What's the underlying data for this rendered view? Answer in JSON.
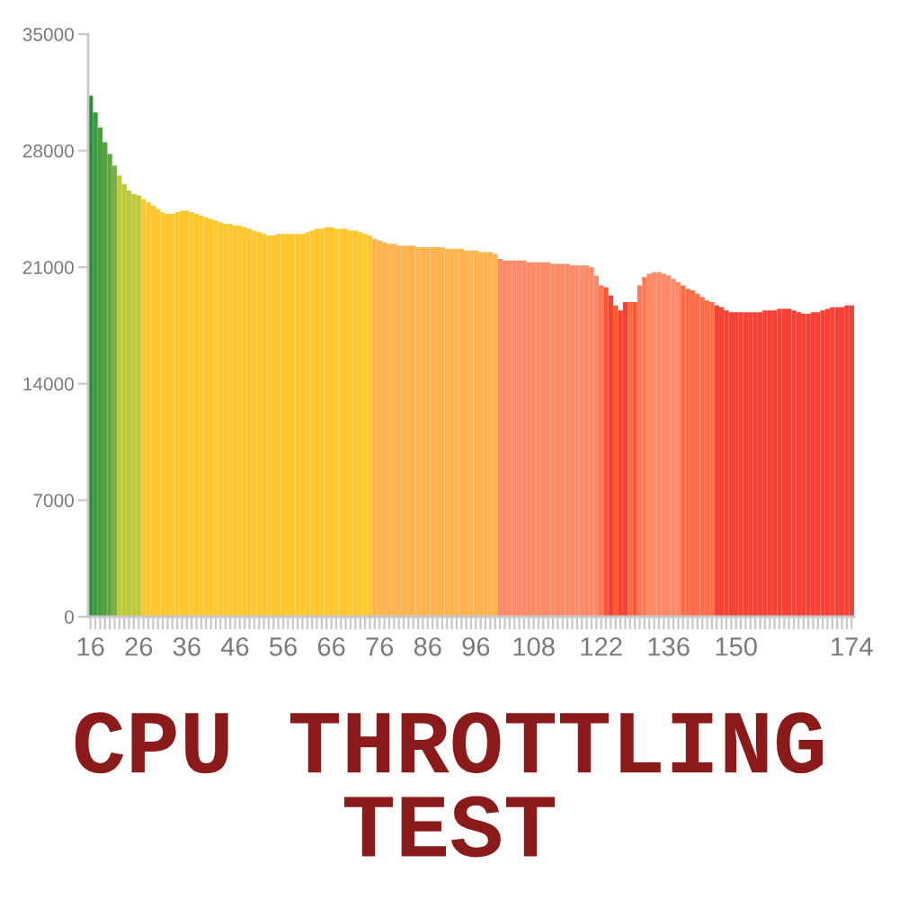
{
  "chart_data": {
    "type": "bar",
    "title": "CPU THROTTLING TEST",
    "x": [
      16,
      17,
      18,
      19,
      20,
      21,
      22,
      23,
      24,
      25,
      26,
      27,
      28,
      29,
      30,
      31,
      32,
      33,
      34,
      35,
      36,
      37,
      38,
      39,
      40,
      41,
      42,
      43,
      44,
      45,
      46,
      47,
      48,
      49,
      50,
      51,
      52,
      53,
      54,
      55,
      56,
      57,
      58,
      59,
      60,
      61,
      62,
      63,
      64,
      65,
      66,
      67,
      68,
      69,
      70,
      71,
      72,
      73,
      74,
      75,
      76,
      77,
      78,
      79,
      80,
      81,
      82,
      83,
      84,
      85,
      86,
      87,
      88,
      89,
      90,
      91,
      92,
      93,
      94,
      95,
      96,
      97,
      98,
      99,
      100,
      101,
      102,
      103,
      104,
      105,
      106,
      107,
      108,
      109,
      110,
      111,
      112,
      113,
      114,
      115,
      116,
      117,
      118,
      119,
      120,
      121,
      122,
      123,
      124,
      125,
      126,
      127,
      128,
      129,
      130,
      131,
      132,
      133,
      134,
      135,
      136,
      137,
      138,
      139,
      140,
      141,
      142,
      143,
      144,
      145,
      146,
      147,
      148,
      149,
      150,
      151,
      152,
      153,
      154,
      155,
      156,
      157,
      158,
      159,
      160,
      161,
      162,
      163,
      164,
      165,
      166,
      167,
      168,
      169,
      170,
      171,
      172,
      173,
      174
    ],
    "values": [
      31300,
      30300,
      29400,
      28500,
      27800,
      27100,
      26500,
      26000,
      25600,
      25400,
      25300,
      25100,
      24900,
      24700,
      24500,
      24300,
      24200,
      24200,
      24300,
      24400,
      24400,
      24300,
      24200,
      24100,
      24000,
      23900,
      23800,
      23700,
      23600,
      23600,
      23500,
      23500,
      23400,
      23300,
      23200,
      23100,
      23000,
      22900,
      22900,
      23000,
      23000,
      23000,
      23000,
      23000,
      23000,
      23100,
      23200,
      23300,
      23300,
      23400,
      23400,
      23300,
      23300,
      23300,
      23200,
      23200,
      23100,
      23000,
      22900,
      22700,
      22600,
      22500,
      22400,
      22400,
      22300,
      22300,
      22300,
      22300,
      22200,
      22200,
      22200,
      22200,
      22200,
      22200,
      22100,
      22100,
      22100,
      22100,
      22000,
      22000,
      22000,
      21900,
      21900,
      21900,
      21800,
      21500,
      21400,
      21400,
      21400,
      21400,
      21400,
      21300,
      21300,
      21300,
      21300,
      21300,
      21200,
      21200,
      21200,
      21200,
      21100,
      21100,
      21100,
      21100,
      21000,
      20500,
      19900,
      19800,
      19300,
      18700,
      18400,
      18900,
      18900,
      18900,
      19900,
      20400,
      20600,
      20700,
      20700,
      20600,
      20500,
      20300,
      20100,
      19900,
      19700,
      19600,
      19400,
      19200,
      19000,
      18900,
      18700,
      18600,
      18400,
      18300,
      18300,
      18300,
      18300,
      18300,
      18300,
      18300,
      18400,
      18400,
      18400,
      18500,
      18500,
      18500,
      18400,
      18300,
      18200,
      18200,
      18300,
      18300,
      18400,
      18500,
      18600,
      18600,
      18600,
      18700,
      18700
    ],
    "colors": [
      "#2e8b3a",
      "#3d9a40",
      "#4a9e3d",
      "#55a141",
      "#5fa543",
      "#77b047",
      "#bfc93b",
      "#bfc93b",
      "#bfc93b",
      "#bfc93b",
      "#bfc93b",
      "#fdc82f",
      "#fdc82f",
      "#fdc82f",
      "#fdc82f",
      "#fdc82f",
      "#fdc82f",
      "#fdc82f",
      "#fdc82f",
      "#fdc82f",
      "#fdc82f",
      "#fdc82f",
      "#fdc82f",
      "#fdc82f",
      "#fdc82f",
      "#fdc82f",
      "#fdc82f",
      "#fdc82f",
      "#fdc82f",
      "#fdc82f",
      "#fdc82f",
      "#fdc82f",
      "#fdc82f",
      "#fdc82f",
      "#fdc82f",
      "#fdc82f",
      "#fdc82f",
      "#fdc82f",
      "#fdc82f",
      "#fdc82f",
      "#fdc82f",
      "#fdc82f",
      "#fdc82f",
      "#fdc82f",
      "#fdc82f",
      "#fdc82f",
      "#fdc82f",
      "#fdc82f",
      "#fdc82f",
      "#fdc82f",
      "#fdc82f",
      "#fdc82f",
      "#fdc82f",
      "#fdc82f",
      "#fdc82f",
      "#fdc82f",
      "#fdc82f",
      "#fdc82f",
      "#fdc82f",
      "#fdb44f",
      "#fdb44f",
      "#fdb44f",
      "#fdb44f",
      "#fdb44f",
      "#fdb44f",
      "#fdb44f",
      "#fdb44f",
      "#fdb44f",
      "#fdb44f",
      "#fdb44f",
      "#fdb44f",
      "#fdb44f",
      "#fdb44f",
      "#fdb44f",
      "#fdb44f",
      "#fdb44f",
      "#fdb44f",
      "#fdb44f",
      "#fdb44f",
      "#fdb44f",
      "#fdb44f",
      "#fdb44f",
      "#fdb44f",
      "#fdb44f",
      "#fdb44f",
      "#fd8a68",
      "#fd8a68",
      "#fd8a68",
      "#fd8a68",
      "#fd8a68",
      "#fd8a68",
      "#fd8a68",
      "#fd8a68",
      "#fd8a68",
      "#fd8a68",
      "#fd8a68",
      "#fd8a68",
      "#fd8a68",
      "#fd8a68",
      "#fd8a68",
      "#fd8a68",
      "#fd8a68",
      "#fd8a68",
      "#fd8a68",
      "#fd8a68",
      "#fd8a68",
      "#fd7a55",
      "#f5553a",
      "#f44336",
      "#ff5a2e",
      "#f44336",
      "#f44336",
      "#ff6b3d",
      "#f55a3c",
      "#fd7a55",
      "#fd7a55",
      "#fd8a68",
      "#fd8a68",
      "#fd8a68",
      "#fd8a68",
      "#fd8a68",
      "#fd8a68",
      "#fd8a68",
      "#fc6e48",
      "#fc6e48",
      "#fc6e48",
      "#fc6e48",
      "#fc6e48",
      "#fc6e48",
      "#fc6e48",
      "#f44336",
      "#f44336",
      "#f44336",
      "#f44336",
      "#f44336",
      "#f44336",
      "#f44336",
      "#f44336",
      "#f44336",
      "#f44336",
      "#f44336",
      "#f44336",
      "#f44336",
      "#f44336",
      "#f44336",
      "#f44336",
      "#f44336",
      "#f44336",
      "#f44336",
      "#f44336",
      "#f44336",
      "#f44336",
      "#f44336",
      "#f44336",
      "#f44336",
      "#f44336",
      "#f44336",
      "#f44336",
      "#f44336"
    ],
    "xlim": [
      15.5,
      174.5
    ],
    "xticks": [
      16,
      26,
      36,
      46,
      56,
      66,
      76,
      86,
      96,
      108,
      122,
      136,
      150,
      174
    ],
    "ylim": [
      0,
      35000
    ],
    "yticks": [
      0,
      7000,
      14000,
      21000,
      28000,
      35000
    ]
  }
}
